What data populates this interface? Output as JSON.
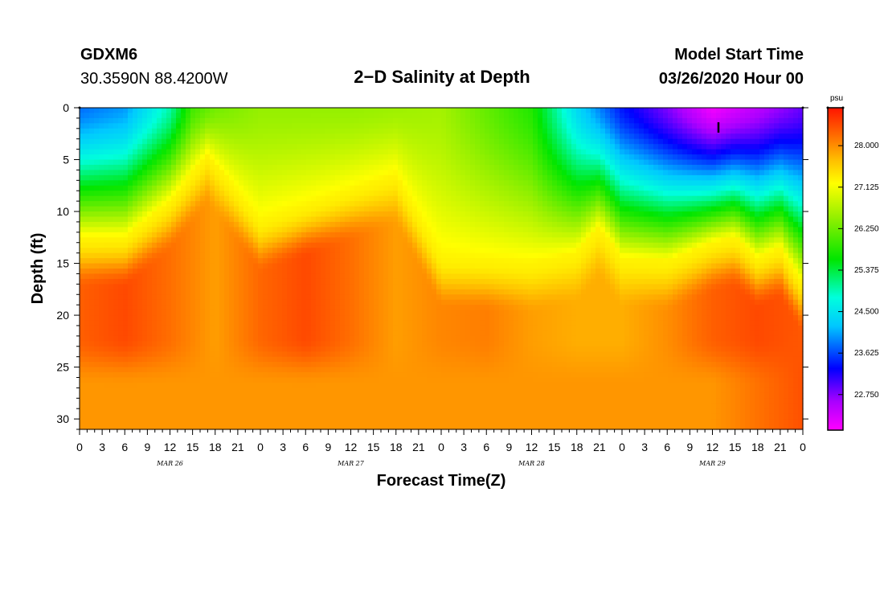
{
  "header": {
    "station": "GDXM6",
    "coordinates": "30.3590N 88.4200W",
    "title": "2−D Salinity at Depth",
    "model_start_label": "Model Start Time",
    "model_start_value": "03/26/2020 Hour 00"
  },
  "chart_data": {
    "type": "heatmap",
    "title": "2−D Salinity at Depth",
    "xlabel": "Forecast Time(Z)",
    "ylabel": "Depth (ft)",
    "xlim": [
      0,
      96
    ],
    "ylim": [
      0,
      31
    ],
    "x_ticks": [
      0,
      3,
      6,
      9,
      12,
      15,
      18,
      21,
      24,
      27,
      30,
      33,
      36,
      39,
      42,
      45,
      48,
      51,
      54,
      57,
      60,
      63,
      66,
      69,
      72,
      75,
      78,
      81,
      84,
      87,
      90,
      93,
      96
    ],
    "x_tick_labels": [
      "0",
      "3",
      "6",
      "9",
      "12",
      "15",
      "18",
      "21",
      "0",
      "3",
      "6",
      "9",
      "12",
      "15",
      "18",
      "21",
      "0",
      "3",
      "6",
      "9",
      "12",
      "15",
      "18",
      "21",
      "0",
      "3",
      "6",
      "9",
      "12",
      "15",
      "18",
      "21",
      "0"
    ],
    "day_labels": [
      {
        "label": "MAR 26",
        "hour": 12
      },
      {
        "label": "MAR 27",
        "hour": 36
      },
      {
        "label": "MAR 28",
        "hour": 60
      },
      {
        "label": "MAR 29",
        "hour": 84
      }
    ],
    "y_ticks": [
      0,
      5,
      10,
      15,
      20,
      25,
      30
    ],
    "y_tick_labels": [
      "0",
      "5",
      "10",
      "15",
      "20",
      "25",
      "30"
    ],
    "colorbar": {
      "units": "psu",
      "min": 22.0,
      "max": 28.8,
      "ticks": [
        28.0,
        27.125,
        26.25,
        25.375,
        24.5,
        23.625,
        22.75
      ],
      "tick_labels": [
        "28.000",
        "27.125",
        "26.250",
        "25.375",
        "24.500",
        "23.625",
        "22.750"
      ]
    },
    "fields": {
      "surface_salinity_hours": [
        0,
        6,
        12,
        15,
        18,
        24,
        36,
        48,
        60,
        66,
        72,
        78,
        84,
        90,
        96
      ],
      "surface_salinity_values": [
        23.8,
        24.0,
        25.0,
        26.0,
        26.3,
        26.5,
        26.5,
        26.6,
        25.8,
        24.4,
        23.4,
        22.8,
        22.1,
        22.5,
        22.9
      ],
      "halocline_hours": [
        0,
        6,
        12,
        17,
        24,
        36,
        42,
        48,
        60,
        66,
        69,
        72,
        78,
        84,
        87,
        90,
        93,
        96
      ],
      "halocline_depth_ft": [
        12.5,
        12.5,
        9.0,
        4.5,
        11.0,
        8.0,
        6.5,
        14.5,
        15.0,
        14.0,
        11.5,
        14.5,
        14.8,
        13.0,
        12.5,
        14.5,
        13.5,
        17.0
      ],
      "deep_salinity_hours": [
        0,
        6,
        12,
        18,
        24,
        30,
        36,
        42,
        48,
        54,
        60,
        66,
        72,
        78,
        84,
        90,
        96
      ],
      "deep_salinity_values": [
        28.3,
        28.45,
        28.2,
        27.9,
        28.25,
        28.45,
        28.2,
        27.9,
        28.05,
        28.1,
        27.9,
        27.8,
        27.8,
        28.0,
        28.3,
        28.45,
        28.35
      ],
      "bottom_salinity_value": 27.95,
      "bottom_salinity_right_edge": 28.4
    }
  }
}
